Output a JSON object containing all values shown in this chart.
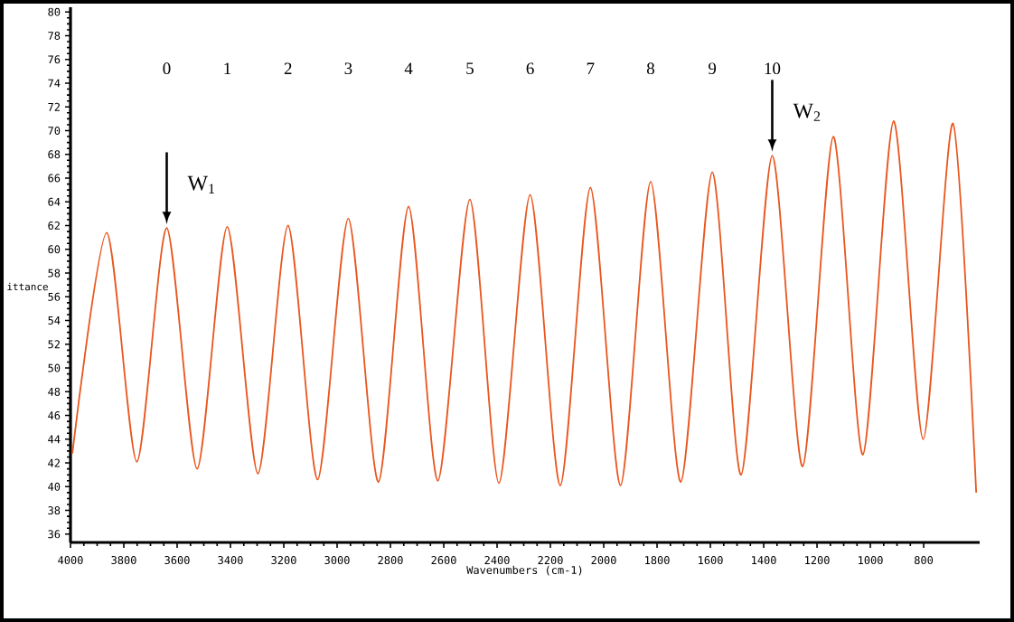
{
  "chart_data": {
    "type": "line",
    "xlabel": "Wavenumbers (cm-1)",
    "ylabel": "ittance",
    "x": [
      3993,
      3864,
      3751,
      3639,
      3525,
      3412,
      3297,
      3184,
      3073,
      2958,
      2845,
      2732,
      2622,
      2502,
      2393,
      2276,
      2163,
      2050,
      1937,
      1824,
      1711,
      1593,
      1485,
      1368,
      1254,
      1139,
      1028,
      913,
      802,
      690,
      603
    ],
    "series": [
      {
        "color": "#e8561e",
        "values": [
          42.8,
          61.4,
          42.1,
          61.8,
          41.5,
          61.9,
          41.1,
          62.0,
          40.6,
          62.6,
          40.4,
          63.6,
          40.5,
          64.2,
          40.3,
          64.6,
          40.1,
          65.2,
          40.1,
          65.7,
          40.4,
          66.5,
          41.0,
          67.9,
          41.7,
          69.5,
          42.7,
          70.8,
          44.0,
          70.6,
          39.5
        ]
      }
    ],
    "xlim": [
      4000,
      590
    ],
    "ylim": [
      35.3,
      80.4
    ],
    "xticks": [
      4000,
      3800,
      3600,
      3400,
      3200,
      3000,
      2800,
      2600,
      2400,
      2200,
      2000,
      1800,
      1600,
      1400,
      1200,
      1000,
      800
    ],
    "yticks": [
      36,
      38,
      40,
      42,
      44,
      46,
      48,
      50,
      52,
      54,
      56,
      58,
      60,
      62,
      64,
      66,
      68,
      70,
      72,
      74,
      76,
      78,
      80
    ],
    "annotations": [
      "0",
      "1",
      "2",
      "3",
      "4",
      "5",
      "6",
      "7",
      "8",
      "9",
      "10",
      {
        "text": "W$_{1}$",
        "x": 3639,
        "y": 61.8
      },
      {
        "text": "W$_{2}$",
        "x": 1368,
        "y": 67.9
      }
    ],
    "grid": false,
    "marker": "none",
    "line_style": "solid"
  }
}
